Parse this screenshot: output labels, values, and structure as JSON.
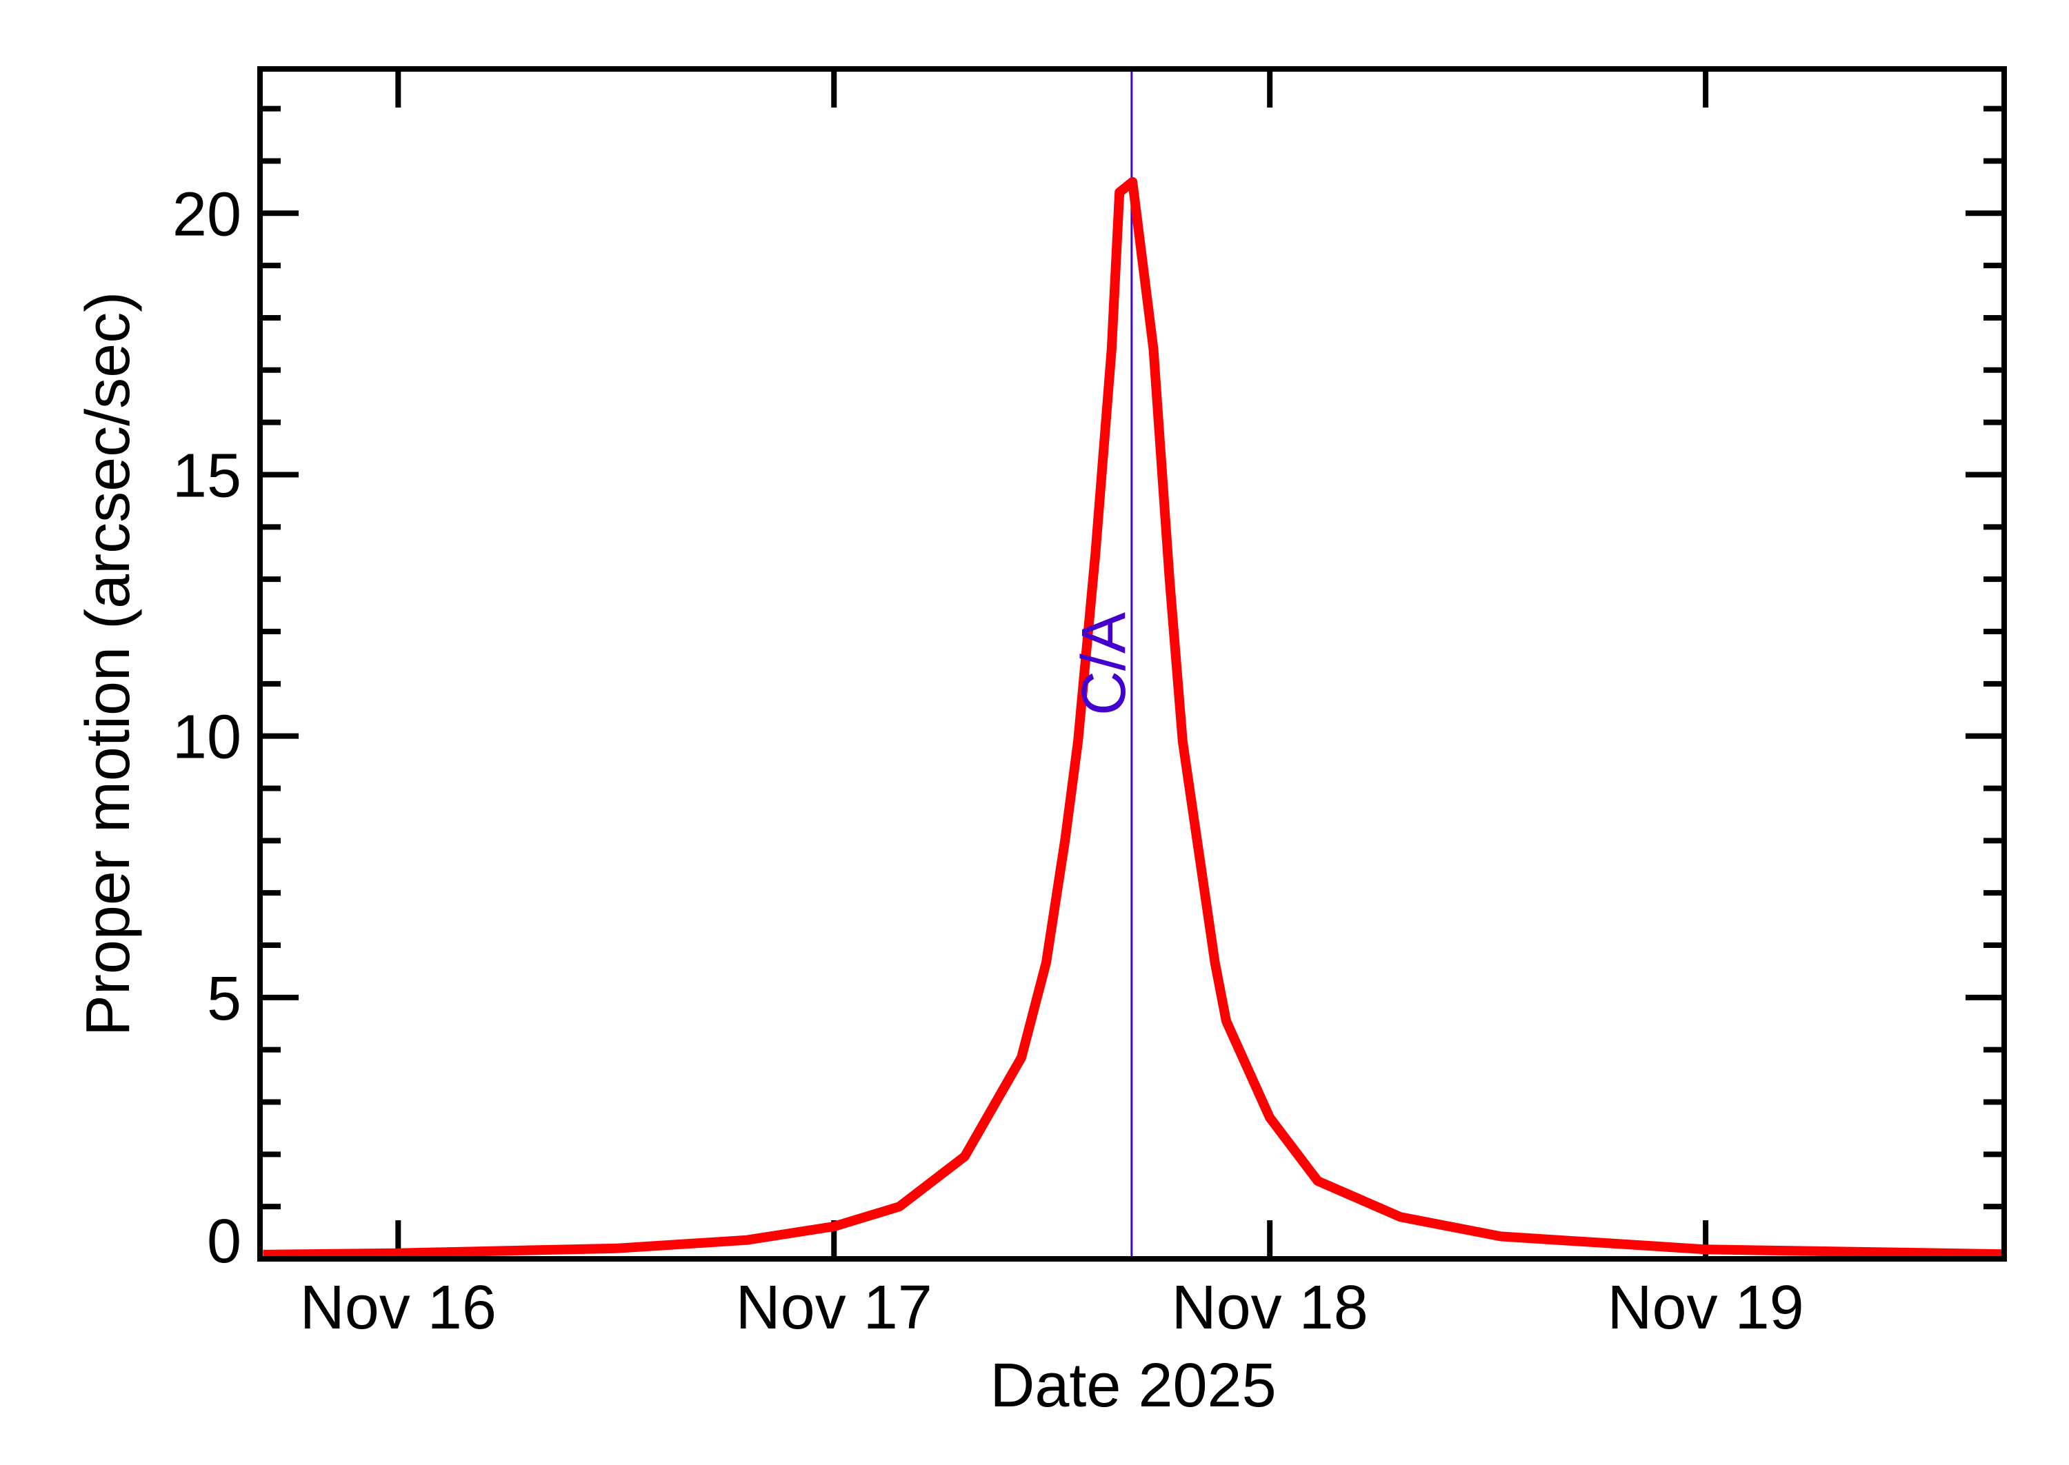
{
  "chart_data": {
    "type": "line",
    "title": "",
    "xlabel": "Date 2025",
    "ylabel": "Proper motion (arcsec/sec)",
    "x_unit": "day of November 2025 (fractional)",
    "xlim": [
      15.683,
      19.685
    ],
    "ylim": [
      0,
      22.76
    ],
    "grid": false,
    "legend": null,
    "x_ticks": [
      {
        "value": 16,
        "label": "Nov 16"
      },
      {
        "value": 17,
        "label": "Nov 17"
      },
      {
        "value": 18,
        "label": "Nov 18"
      },
      {
        "value": 19,
        "label": "Nov 19"
      }
    ],
    "y_ticks": [
      {
        "value": 0,
        "label": "0"
      },
      {
        "value": 5,
        "label": "5"
      },
      {
        "value": 10,
        "label": "10"
      },
      {
        "value": 15,
        "label": "15"
      },
      {
        "value": 20,
        "label": "20"
      }
    ],
    "y_minor_step": 1,
    "series": [
      {
        "name": "Proper motion",
        "color": "#ff0000",
        "x": [
          15.69,
          16.0,
          16.5,
          16.8,
          17.0,
          17.15,
          17.3,
          17.43,
          17.487,
          17.53,
          17.56,
          17.6,
          17.637,
          17.655,
          17.685,
          17.7,
          17.733,
          17.77,
          17.8,
          17.874,
          17.9,
          18.0,
          18.11,
          18.3,
          18.53,
          19.0,
          19.685
        ],
        "values": [
          0.08,
          0.11,
          0.2,
          0.36,
          0.62,
          1.0,
          1.96,
          3.85,
          5.67,
          8.0,
          9.9,
          13.5,
          17.4,
          20.4,
          20.6,
          19.6,
          17.4,
          13.0,
          9.9,
          5.67,
          4.55,
          2.7,
          1.49,
          0.8,
          0.43,
          0.18,
          0.09
        ]
      }
    ],
    "annotations": [
      {
        "type": "vline",
        "x": 17.683,
        "label": "C/A",
        "color": "#4400cc"
      }
    ]
  },
  "colors": {
    "curve": "#ff0000",
    "ca_line": "#4400cc",
    "axes": "#000000",
    "background": "#ffffff"
  }
}
